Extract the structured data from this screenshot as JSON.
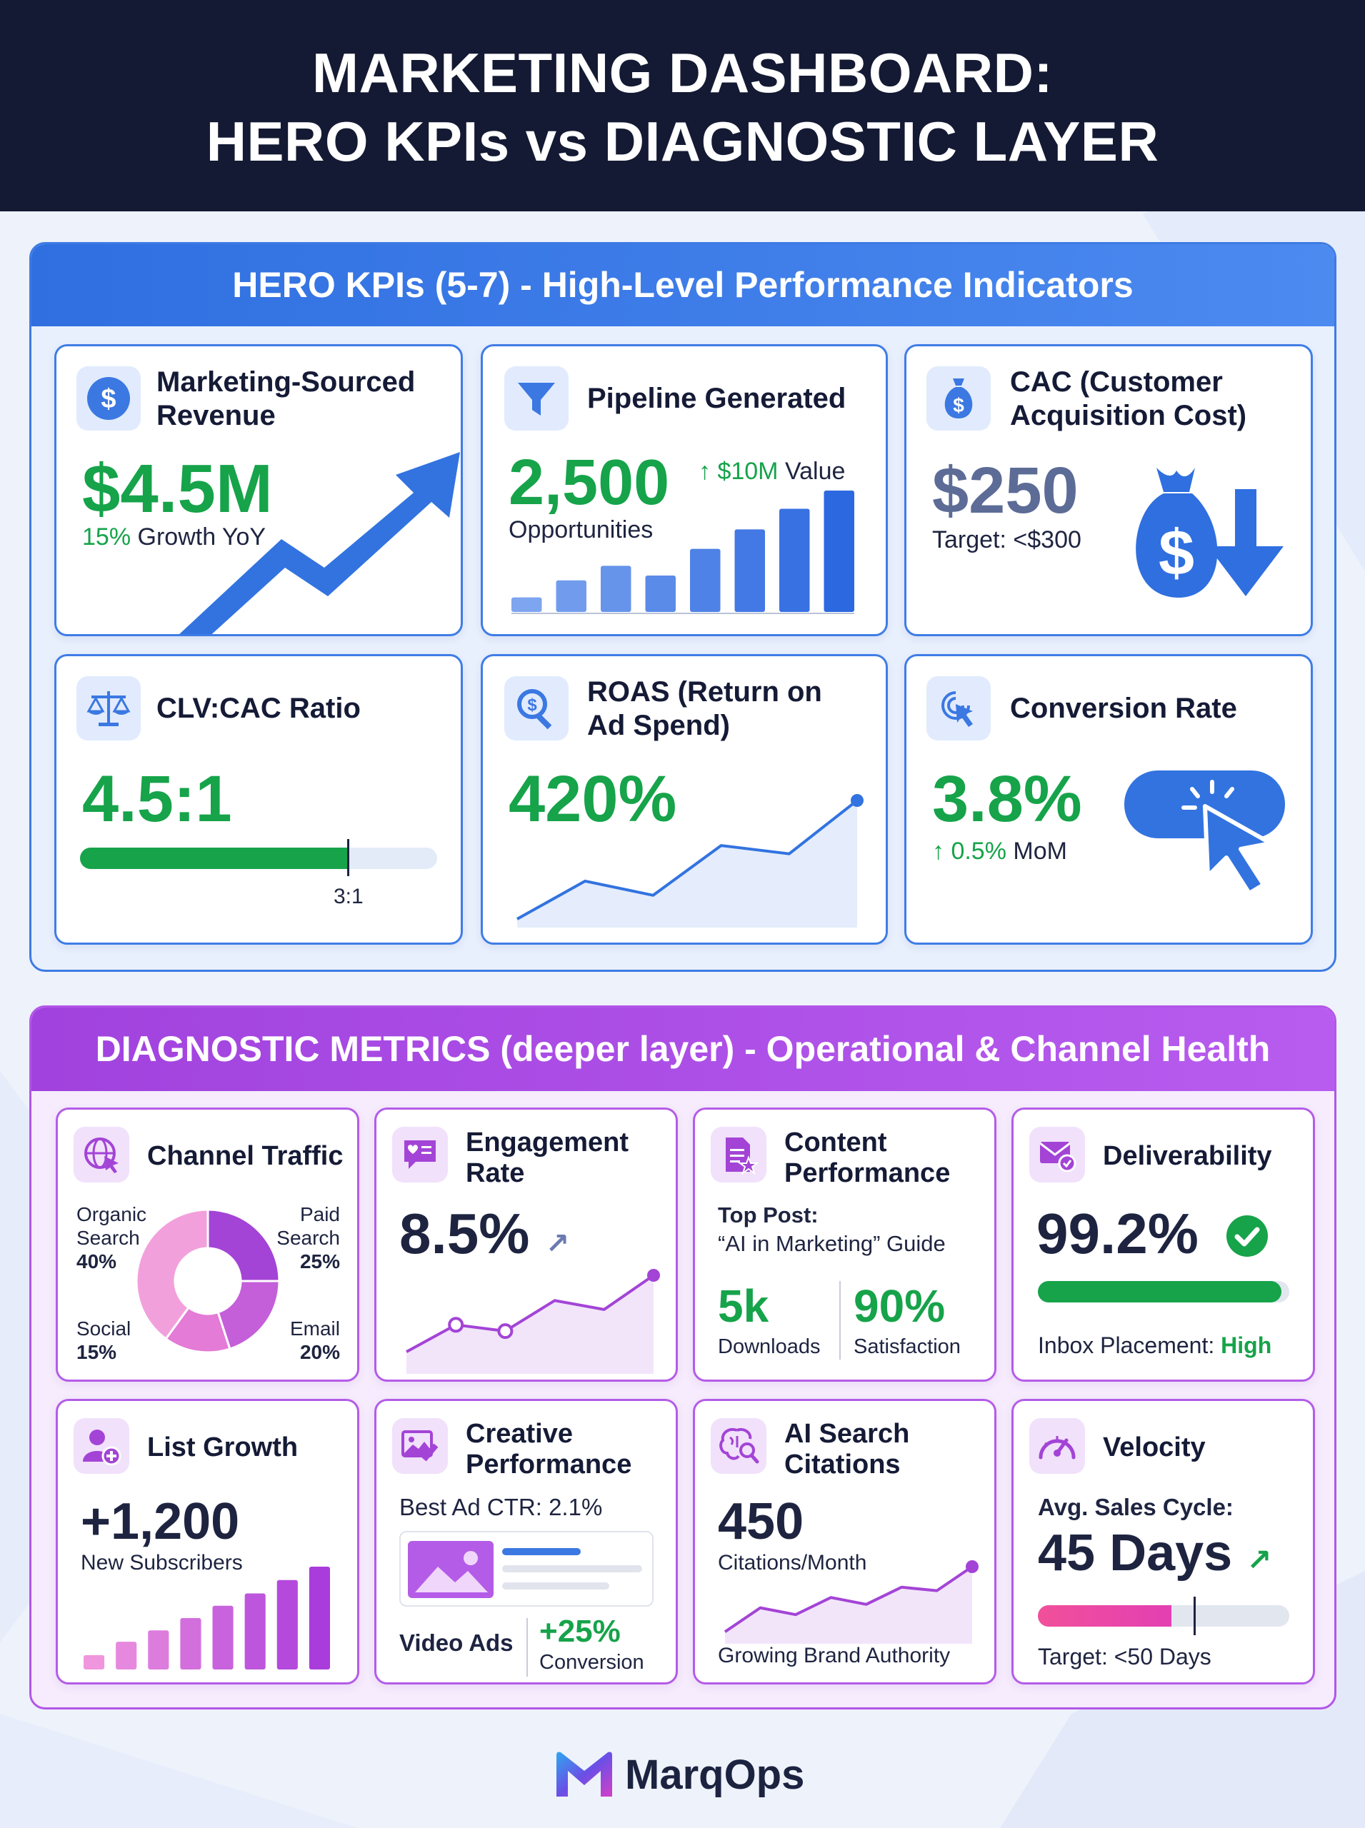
{
  "header": {
    "line1": "MARKETING DASHBOARD:",
    "line2": "HERO KPIs vs DIAGNOSTIC LAYER"
  },
  "hero": {
    "title": "HERO KPIs (5-7) - High-Level Performance Indicators",
    "revenue": {
      "title1": "Marketing-Sourced",
      "title2": "Revenue",
      "value": "$4.5M",
      "growth_pct": "15%",
      "growth_text": "Growth YoY",
      "icon": "dollar-icon"
    },
    "pipeline": {
      "title": "Pipeline Generated",
      "value": "2,500",
      "value_label": "Opportunities",
      "delta": "↑ $10M",
      "delta_label": "Value",
      "bars": [
        12,
        26,
        38,
        30,
        52,
        68,
        85,
        100
      ],
      "icon": "funnel-icon"
    },
    "cac": {
      "title1": "CAC (Customer",
      "title2": "Acquisition Cost)",
      "value": "$250",
      "target": "Target: <$300",
      "icon": "money-bag-icon"
    },
    "clv": {
      "title": "CLV:CAC Ratio",
      "value": "4.5:1",
      "marker_label": "3:1",
      "fill_fraction": 0.75,
      "icon": "scale-icon"
    },
    "roas": {
      "title1": "ROAS (Return on",
      "title2": "Ad Spend)",
      "value": "420%",
      "trend": [
        0.0,
        0.32,
        0.2,
        0.62,
        0.55,
        1.0
      ],
      "icon": "search-dollar-icon"
    },
    "conversion": {
      "title": "Conversion Rate",
      "value": "3.8%",
      "delta_pct": "↑ 0.5%",
      "delta_label": "MoM",
      "icon": "click-cursor-icon"
    }
  },
  "diagnostic": {
    "title": "DIAGNOSTIC METRICS (deeper layer) - Operational & Channel Health",
    "traffic": {
      "title": "Channel Traffic",
      "icon": "globe-cursor-icon",
      "segments": [
        {
          "name1": "Organic",
          "name2": "Search",
          "value": "40%",
          "share": 40,
          "color": "#f2a0dc"
        },
        {
          "name1": "Paid",
          "name2": "Search",
          "value": "25%",
          "share": 25,
          "color": "#a344d6"
        },
        {
          "name1": "Email",
          "name2": "",
          "value": "20%",
          "share": 20,
          "color": "#c45fd9"
        },
        {
          "name1": "Social",
          "name2": "",
          "value": "15%",
          "share": 15,
          "color": "#e47bd6"
        }
      ]
    },
    "engagement": {
      "title1": "Engagement",
      "title2": "Rate",
      "value": "8.5%",
      "trend": [
        0.15,
        0.45,
        0.38,
        0.72,
        0.62,
        1.0
      ],
      "icon": "chat-heart-icon"
    },
    "content": {
      "title1": "Content",
      "title2": "Performance",
      "top_label": "Top Post:",
      "top_post": "“AI in Marketing” Guide",
      "downloads": "5k",
      "downloads_label": "Downloads",
      "satisfaction": "90%",
      "satisfaction_label": "Satisfaction",
      "icon": "document-star-icon"
    },
    "deliverability": {
      "title": "Deliverability",
      "value": "99.2%",
      "fill_fraction": 0.97,
      "placement_label": "Inbox Placement:",
      "placement_value": "High",
      "icon": "envelope-check-icon"
    },
    "list": {
      "title": "List Growth",
      "value": "+1,200",
      "value_label": "New Subscribers",
      "bars": [
        14,
        27,
        38,
        50,
        62,
        74,
        87,
        100
      ],
      "icon": "user-add-icon"
    },
    "creative": {
      "title1": "Creative",
      "title2": "Performance",
      "ctr": "Best Ad CTR: 2.1%",
      "video_label": "Video Ads",
      "conv_value": "+25%",
      "conv_label": "Conversion",
      "icon": "image-pen-icon"
    },
    "ai": {
      "title1": "AI Search",
      "title2": "Citations",
      "value": "450",
      "value_label": "Citations/Month",
      "caption": "Growing Brand Authority",
      "trend": [
        0.05,
        0.4,
        0.3,
        0.55,
        0.45,
        0.7,
        0.65,
        1.0
      ],
      "icon": "brain-search-icon"
    },
    "velocity": {
      "title": "Velocity",
      "cycle_label": "Avg. Sales Cycle:",
      "value": "45 Days",
      "fill_fraction": 0.53,
      "marker_fraction": 0.62,
      "target": "Target: <50 Days",
      "icon": "speedometer-icon"
    }
  },
  "footer": {
    "brand": "MarqOps",
    "icon": "marqops-logo-icon"
  },
  "colors": {
    "hero_blue": "#3f7de6",
    "diag_purple": "#b45ce8",
    "kpi_green": "#16a34a",
    "navy": "#141a33",
    "pink": "#ec4899"
  }
}
